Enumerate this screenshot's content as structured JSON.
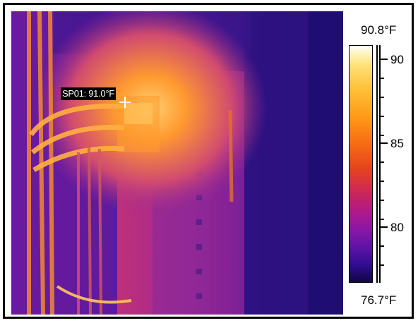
{
  "spot": {
    "label": "SP01: 91.0°F"
  },
  "scale": {
    "max_label": "90.8°F",
    "min_label": "76.7°F",
    "ticks": [
      "90",
      "85",
      "80"
    ]
  },
  "colors": {
    "palette": "ironbow",
    "hot": "#ffffff",
    "warm": "#ff9a18",
    "mid": "#b01a8a",
    "cool": "#120646"
  }
}
